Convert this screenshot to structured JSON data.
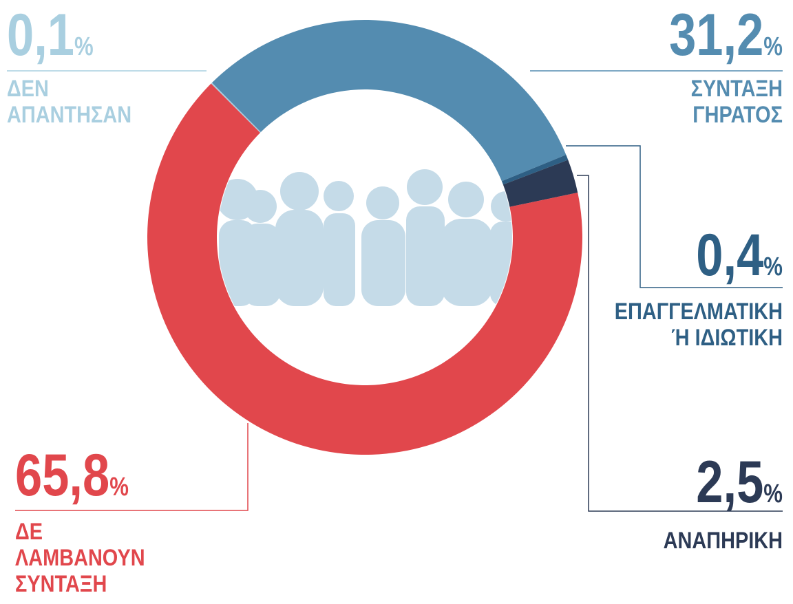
{
  "chart_data": {
    "type": "donut",
    "categories": [
      [
        "ΔΕΝ",
        "ΑΠΑΝΤΗΣΑΝ"
      ],
      [
        "ΣΥΝΤΑΞΗ",
        "ΓΗΡΑΤΟΣ"
      ],
      [
        "ΕΠΑΓΓΕΛΜΑΤΙΚΗ",
        "Ή ΙΔΙΩΤΙΚΗ"
      ],
      [
        "ΑΝΑΠΗΡΙΚΗ"
      ],
      [
        "ΔΕ",
        "ΛΑΜΒΑΝΟΥΝ",
        "ΣΥΝΤΑΞΗ"
      ]
    ],
    "values": [
      0.1,
      31.2,
      0.4,
      2.5,
      65.8
    ],
    "value_labels": [
      "0,1",
      "31,2",
      "0,4",
      "2,5",
      "65,8"
    ],
    "unit": "%",
    "colors": [
      "#a9cfe0",
      "#548cb0",
      "#2e5f84",
      "#2c3a55",
      "#e1474c"
    ]
  }
}
